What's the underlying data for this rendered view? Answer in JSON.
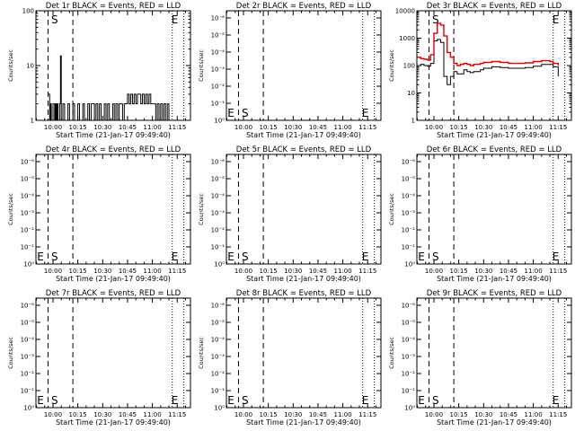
{
  "panels": [
    {
      "title": "Det 1r BLACK = Events, RED = LLD",
      "scale": "log-decade",
      "yticks": [
        "1",
        "10",
        "100"
      ],
      "ylabel": "Counts/sec",
      "markers": {
        "start": "S",
        "end": "E"
      },
      "event_series_color": "#000000"
    },
    {
      "title": "Det 2r BLACK = Events, RED = LLD",
      "scale": "empty",
      "yticks": [
        "10⁰",
        "10⁻¹",
        "10⁻²",
        "10⁻³",
        "10⁻⁴",
        "10⁻⁵",
        "10⁻⁶"
      ],
      "ylabel": "Counts/sec",
      "markers": {
        "start": "S",
        "end": "E"
      }
    },
    {
      "title": "Det 3r BLACK = Events, RED = LLD",
      "scale": "log-decade",
      "yticks": [
        "1",
        "10",
        "100",
        "1000",
        "10000"
      ],
      "ylabel": "Counts/sec",
      "markers": {
        "start": "S",
        "end": "E"
      },
      "event_series_color": "#000000",
      "lld_series_color": "#dd0000"
    },
    {
      "title": "Det 4r BLACK = Events, RED = LLD",
      "scale": "empty",
      "yticks": [
        "10⁰",
        "10⁻¹",
        "10⁻²",
        "10⁻³",
        "10⁻⁴",
        "10⁻⁵",
        "10⁻⁶"
      ],
      "ylabel": "Counts/sec",
      "markers": {
        "start": "S",
        "end": "E"
      }
    },
    {
      "title": "Det 5r BLACK = Events, RED = LLD",
      "scale": "empty",
      "yticks": [
        "10⁰",
        "10⁻¹",
        "10⁻²",
        "10⁻³",
        "10⁻⁴",
        "10⁻⁵",
        "10⁻⁶"
      ],
      "ylabel": "Counts/sec",
      "markers": {
        "start": "S",
        "end": "E"
      }
    },
    {
      "title": "Det 6r BLACK = Events, RED = LLD",
      "scale": "empty",
      "yticks": [
        "10⁰",
        "10⁻¹",
        "10⁻²",
        "10⁻³",
        "10⁻⁴",
        "10⁻⁵",
        "10⁻⁶"
      ],
      "ylabel": "Counts/sec",
      "markers": {
        "start": "S",
        "end": "E"
      }
    },
    {
      "title": "Det 7r BLACK = Events, RED = LLD",
      "scale": "empty",
      "yticks": [
        "10⁰",
        "10⁻¹",
        "10⁻²",
        "10⁻³",
        "10⁻⁴",
        "10⁻⁵",
        "10⁻⁶"
      ],
      "ylabel": "Counts/sec",
      "markers": {
        "start": "S",
        "end": "E"
      }
    },
    {
      "title": "Det 8r BLACK = Events, RED = LLD",
      "scale": "empty",
      "yticks": [
        "10⁰",
        "10⁻¹",
        "10⁻²",
        "10⁻³",
        "10⁻⁴",
        "10⁻⁵",
        "10⁻⁶"
      ],
      "ylabel": "Counts/sec",
      "markers": {
        "start": "S",
        "end": "E"
      }
    },
    {
      "title": "Det 9r BLACK = Events, RED = LLD",
      "scale": "empty",
      "yticks": [
        "10⁰",
        "10⁻¹",
        "10⁻²",
        "10⁻³",
        "10⁻⁴",
        "10⁻⁵",
        "10⁻⁶"
      ],
      "ylabel": "Counts/sec",
      "markers": {
        "start": "S",
        "end": "E"
      }
    }
  ],
  "xaxis": {
    "label": "Start Time (21-Jan-17 09:49:40)",
    "ticks": [
      "10:00",
      "10:15",
      "10:30",
      "10:45",
      "11:00",
      "11:15"
    ],
    "tick_minutes": [
      600,
      615,
      630,
      645,
      660,
      675
    ],
    "range_minutes": [
      589.7,
      683
    ]
  },
  "chart_data": [
    {
      "type": "line",
      "title": "Det 1r BLACK = Events, RED = LLD",
      "xlabel": "Start Time (21-Jan-17 09:49:40)",
      "ylabel": "Counts/sec",
      "yscale": "log",
      "ylim": [
        1,
        100
      ],
      "vlines_minutes": {
        "dashed": [
          597,
          612
        ],
        "dotted": [
          672,
          679
        ]
      },
      "series": [
        {
          "name": "Events",
          "color": "#000000",
          "x": [
            597,
            598,
            598.5,
            599,
            599.5,
            600,
            601,
            601.5,
            602,
            602.5,
            603,
            604,
            604.5,
            605,
            606,
            607,
            607.5,
            608,
            609,
            610,
            611,
            612,
            613,
            614,
            615,
            616,
            617,
            618,
            619,
            620,
            621,
            622,
            623,
            624,
            625,
            626,
            627,
            628,
            629,
            630,
            631,
            632,
            633,
            634,
            635,
            636,
            637,
            638,
            639,
            640,
            641,
            642,
            643,
            644,
            645,
            646,
            647,
            648,
            649,
            650,
            651,
            652,
            653,
            654,
            655,
            656,
            657,
            658,
            659,
            660,
            661,
            662,
            663,
            664,
            665,
            666,
            667,
            668,
            669,
            670
          ],
          "values": [
            3,
            1,
            2,
            1,
            1,
            2,
            1,
            2,
            1,
            2,
            1,
            2,
            15,
            1,
            2,
            1,
            1,
            1,
            2,
            1,
            1,
            2,
            1,
            1,
            2,
            1,
            1,
            2,
            1,
            1,
            2,
            1,
            2,
            2,
            1,
            2,
            1,
            2,
            1,
            1,
            2,
            1,
            2,
            1,
            1,
            2,
            1,
            2,
            1,
            2,
            2,
            1,
            2,
            2,
            3,
            2,
            3,
            2,
            3,
            2,
            3,
            3,
            2,
            3,
            2,
            3,
            2,
            3,
            2,
            2,
            2,
            1,
            2,
            1,
            2,
            1,
            2,
            1,
            2,
            1
          ]
        }
      ]
    },
    {
      "type": "line",
      "title": "Det 3r BLACK = Events, RED = LLD",
      "xlabel": "Start Time (21-Jan-17 09:49:40)",
      "ylabel": "Counts/sec",
      "yscale": "log",
      "ylim": [
        1,
        10000
      ],
      "vlines_minutes": {
        "dashed": [
          597,
          612
        ],
        "dotted": [
          672,
          679
        ]
      },
      "series": [
        {
          "name": "Events",
          "color": "#000000",
          "x": [
            590,
            592,
            594,
            596,
            598,
            600,
            602,
            604,
            606,
            608,
            610,
            612,
            614,
            616,
            618,
            620,
            622,
            624,
            626,
            628,
            630,
            635,
            640,
            645,
            650,
            655,
            660,
            665,
            670,
            672,
            675
          ],
          "values": [
            100,
            110,
            100,
            95,
            120,
            800,
            900,
            700,
            40,
            20,
            40,
            60,
            50,
            50,
            70,
            60,
            55,
            60,
            60,
            70,
            80,
            90,
            85,
            80,
            80,
            85,
            95,
            110,
            110,
            90,
            40
          ]
        },
        {
          "name": "LLD",
          "color": "#dd0000",
          "x": [
            590,
            592,
            594,
            596,
            598,
            600,
            602,
            604,
            606,
            608,
            610,
            612,
            614,
            616,
            618,
            620,
            622,
            624,
            626,
            628,
            630,
            635,
            640,
            645,
            650,
            655,
            660,
            665,
            670,
            672,
            675
          ],
          "values": [
            200,
            180,
            170,
            160,
            250,
            1500,
            3500,
            3000,
            1200,
            300,
            200,
            120,
            100,
            110,
            120,
            110,
            100,
            110,
            110,
            120,
            130,
            140,
            130,
            120,
            120,
            125,
            140,
            150,
            140,
            120,
            100
          ]
        }
      ]
    }
  ]
}
